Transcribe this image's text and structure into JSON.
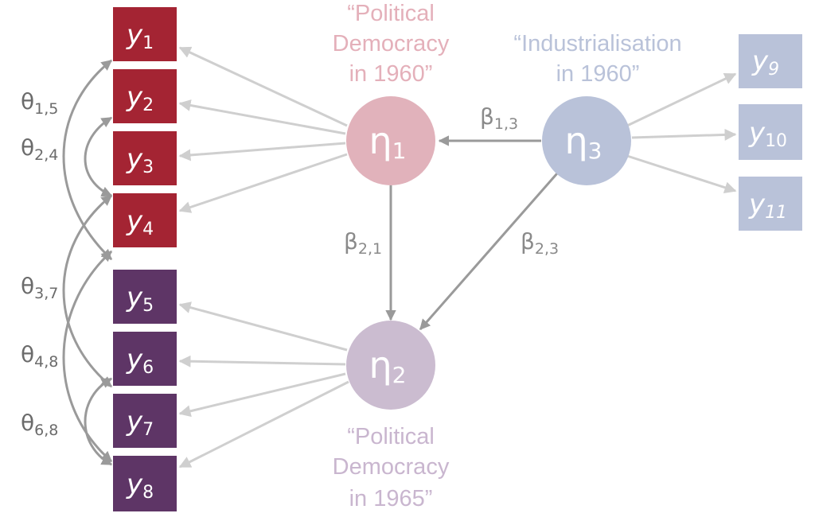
{
  "colors": {
    "red_box": "#a42433",
    "purple_box": "#5e3566",
    "blue_box": "#b9c2d9",
    "eta1": "#e1b2bb",
    "eta2": "#cbbcd0",
    "eta3": "#b9c2d9",
    "arrow_light": "#cfcfcf",
    "arrow_dark": "#9a9a9a",
    "eta1_title": "#e4b0ba",
    "eta3_title": "#b9c2d9",
    "eta2_title": "#c9b6cf"
  },
  "indicators": {
    "y1": {
      "base": "y",
      "sub": "1"
    },
    "y2": {
      "base": "y",
      "sub": "2"
    },
    "y3": {
      "base": "y",
      "sub": "3"
    },
    "y4": {
      "base": "y",
      "sub": "4"
    },
    "y5": {
      "base": "y",
      "sub": "5"
    },
    "y6": {
      "base": "y",
      "sub": "6"
    },
    "y7": {
      "base": "y",
      "sub": "7"
    },
    "y8": {
      "base": "y",
      "sub": "8"
    },
    "y9": {
      "base": "y",
      "sub": "9"
    },
    "y10": {
      "base": "y",
      "sub": "10"
    },
    "y11": {
      "base": "y",
      "sub": "11"
    }
  },
  "latents": {
    "eta1": {
      "symbol": "η",
      "sub": "1"
    },
    "eta2": {
      "symbol": "η",
      "sub": "2"
    },
    "eta3": {
      "symbol": "η",
      "sub": "3"
    }
  },
  "titles": {
    "eta1": [
      "“Political",
      "Democracy",
      "in 1960”"
    ],
    "eta3": [
      "“Industrialisation",
      "in 1960”"
    ],
    "eta2": [
      "“Political",
      "Democracy",
      "in 1965”"
    ]
  },
  "paths": {
    "b13": {
      "symbol": "β",
      "sub": "1,3"
    },
    "b21": {
      "symbol": "β",
      "sub": "2,1"
    },
    "b23": {
      "symbol": "β",
      "sub": "2,3"
    }
  },
  "covariances": {
    "t15": {
      "symbol": "θ",
      "sub": "1,5"
    },
    "t24": {
      "symbol": "θ",
      "sub": "2,4"
    },
    "t37": {
      "symbol": "θ",
      "sub": "3,7"
    },
    "t48": {
      "symbol": "θ",
      "sub": "4,8"
    },
    "t68": {
      "symbol": "θ",
      "sub": "6,8"
    }
  }
}
